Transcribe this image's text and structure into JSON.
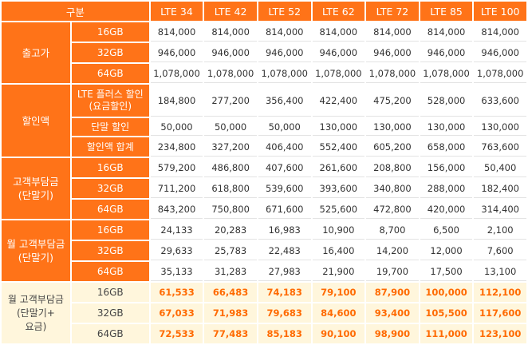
{
  "header": {
    "corner": "구분",
    "plans": [
      "LTE 34",
      "LTE 42",
      "LTE 52",
      "LTE 62",
      "LTE 72",
      "LTE 85",
      "LTE 100"
    ]
  },
  "groups": [
    {
      "label": "출고가",
      "rows": [
        {
          "label": "16GB",
          "values": [
            "814,000",
            "814,000",
            "814,000",
            "814,000",
            "814,000",
            "814,000",
            "814,000"
          ]
        },
        {
          "label": "32GB",
          "values": [
            "946,000",
            "946,000",
            "946,000",
            "946,000",
            "946,000",
            "946,000",
            "946,000"
          ]
        },
        {
          "label": "64GB",
          "values": [
            "1,078,000",
            "1,078,000",
            "1,078,000",
            "1,078,000",
            "1,078,000",
            "1,078,000",
            "1,078,000"
          ]
        }
      ]
    },
    {
      "label": "할인액",
      "rows": [
        {
          "label": "LTE 플러스 할인\n(요금할인)",
          "values": [
            "184,800",
            "277,200",
            "356,400",
            "422,400",
            "475,200",
            "528,000",
            "633,600"
          ]
        },
        {
          "label": "단말 할인",
          "values": [
            "50,000",
            "50,000",
            "50,000",
            "130,000",
            "130,000",
            "130,000",
            "130,000"
          ]
        },
        {
          "label": "할인액 합계",
          "values": [
            "234,800",
            "327,200",
            "406,400",
            "552,400",
            "605,200",
            "658,000",
            "763,600"
          ]
        }
      ]
    },
    {
      "label": "고객부담금\n(단말기)",
      "rows": [
        {
          "label": "16GB",
          "values": [
            "579,200",
            "486,800",
            "407,600",
            "261,600",
            "208,800",
            "156,000",
            "50,400"
          ]
        },
        {
          "label": "32GB",
          "values": [
            "711,200",
            "618,800",
            "539,600",
            "393,600",
            "340,800",
            "288,000",
            "182,400"
          ]
        },
        {
          "label": "64GB",
          "values": [
            "843,200",
            "750,800",
            "671,600",
            "525,600",
            "472,800",
            "420,000",
            "314,400"
          ]
        }
      ]
    },
    {
      "label": "월 고객부담금\n(단말기)",
      "rows": [
        {
          "label": "16GB",
          "values": [
            "24,133",
            "20,283",
            "16,983",
            "10,900",
            "8,700",
            "6,500",
            "2,100"
          ]
        },
        {
          "label": "32GB",
          "values": [
            "29,633",
            "25,783",
            "22,483",
            "16,400",
            "14,200",
            "12,000",
            "7,600"
          ]
        },
        {
          "label": "64GB",
          "values": [
            "35,133",
            "31,283",
            "27,983",
            "21,900",
            "19,700",
            "17,500",
            "13,100"
          ]
        }
      ]
    },
    {
      "label": "월 고객부담금\n(단말기+\n요금)",
      "rows": [
        {
          "label": "16GB",
          "values": [
            "61,533",
            "66,483",
            "74,183",
            "79,100",
            "87,900",
            "100,000",
            "112,100"
          ]
        },
        {
          "label": "32GB",
          "values": [
            "67,033",
            "71,983",
            "79,683",
            "84,600",
            "93,400",
            "105,500",
            "117,600"
          ]
        },
        {
          "label": "64GB",
          "values": [
            "72,533",
            "77,483",
            "85,183",
            "90,100",
            "98,900",
            "111,000",
            "123,100"
          ]
        }
      ]
    }
  ]
}
